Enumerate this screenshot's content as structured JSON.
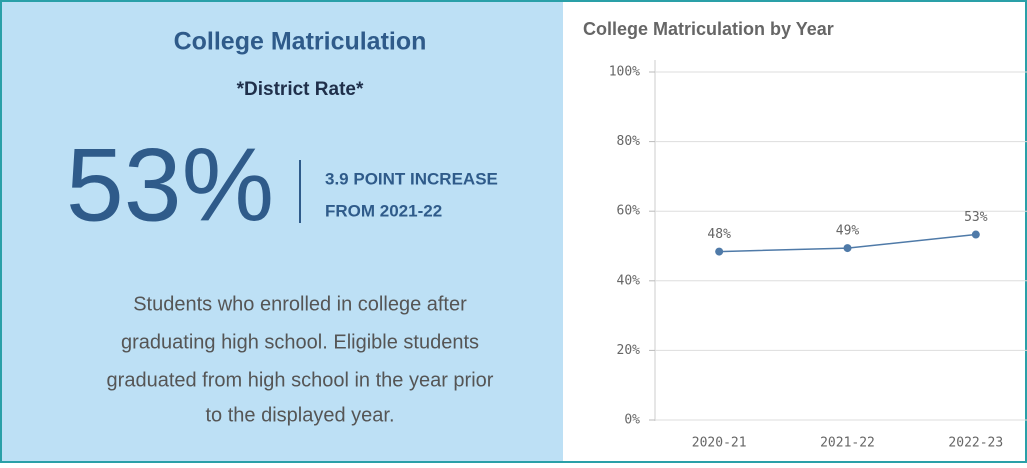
{
  "kpi": {
    "title": "College Matriculation",
    "subtitle": "*District Rate*",
    "value": "53%",
    "change_lines": [
      "3.9 POINT INCREASE",
      "FROM 2021-22"
    ],
    "description_lines": [
      "Students who enrolled in college after",
      "graduating high school. Eligible students",
      "graduated from high school in the year prior",
      "to the displayed year."
    ]
  },
  "chart_data": {
    "type": "line",
    "title": "College Matriculation by Year",
    "categories": [
      "2020-21",
      "2021-22",
      "2022-23"
    ],
    "values": [
      48.4,
      49.4,
      53.3
    ],
    "value_labels": [
      "48%",
      "49%",
      "53%"
    ],
    "color": "#4f7aa8",
    "ylim": [
      0,
      100
    ],
    "yticks": [
      {
        "value": 0,
        "label": "0%"
      },
      {
        "value": 20,
        "label": "20%"
      },
      {
        "value": 40,
        "label": "40%"
      },
      {
        "value": 60,
        "label": "60%"
      },
      {
        "value": 80,
        "label": "80%"
      },
      {
        "value": 100,
        "label": "100%"
      }
    ],
    "grid": true
  }
}
